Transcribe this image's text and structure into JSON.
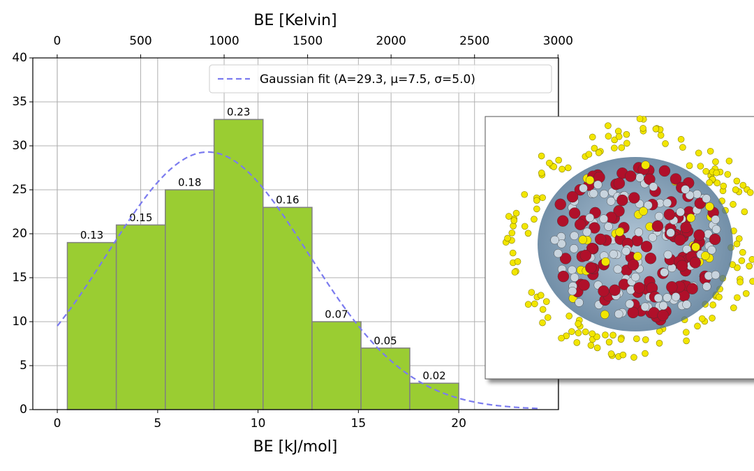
{
  "chart_data": {
    "type": "histogram",
    "xlabel": "BE [kJ/mol]",
    "x2label": "BE [Kelvin]",
    "bins": [
      0.5,
      2.94,
      5.38,
      7.81,
      10.25,
      12.69,
      15.13,
      17.56,
      20.0
    ],
    "values": [
      19,
      21,
      25,
      33,
      23,
      10,
      7,
      3
    ],
    "fraction_labels": [
      0.13,
      0.15,
      0.18,
      0.23,
      0.16,
      0.07,
      0.05,
      0.02
    ],
    "color": "#9acd32",
    "edge_color": "#808080",
    "xlim": [
      -1.22,
      24.97
    ],
    "xticks": [
      0,
      5,
      10,
      15,
      20
    ],
    "x2lim": [
      -146,
      3003
    ],
    "x2ticks": [
      0,
      500,
      1000,
      1500,
      2000,
      2500,
      3000
    ],
    "ylim": [
      0,
      40
    ],
    "yticks": [
      0,
      5,
      10,
      15,
      20,
      25,
      30,
      35,
      40
    ],
    "grid": true,
    "fit": {
      "A": 29.3,
      "mu": 7.5,
      "sigma": 5.0,
      "x_range": [
        0,
        24
      ]
    },
    "fit_color": "#7b7bef",
    "legend_label": "Gaussian fit (A=29.3, μ=7.5, σ=5.0)",
    "legend_loc": "upper right"
  }
}
